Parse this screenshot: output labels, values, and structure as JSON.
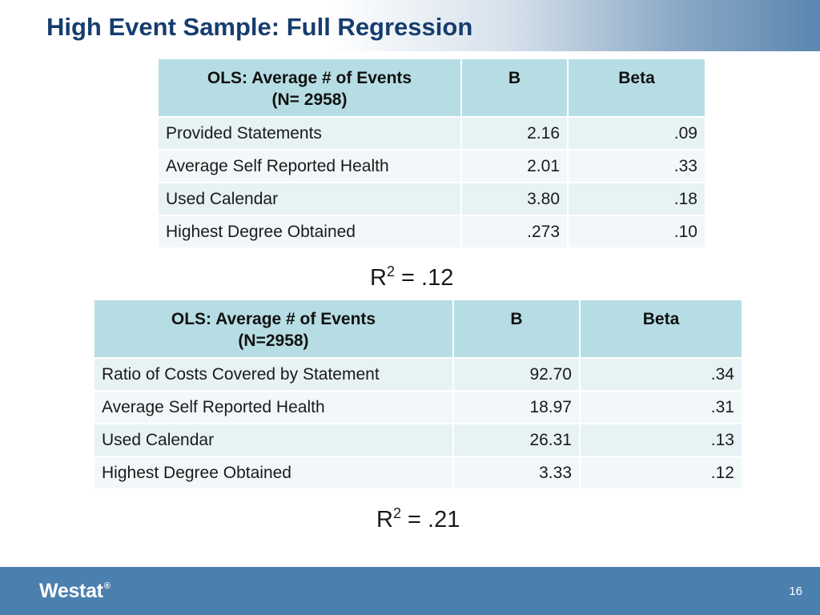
{
  "slide": {
    "title": "High Event Sample: Full Regression",
    "page_number": "16",
    "logo_text": "Westat",
    "logo_mark": "®"
  },
  "table1": {
    "header": {
      "col1_line1": "OLS: Average # of Events",
      "col1_line2": "(N= 2958)",
      "col2": "B",
      "col3": "Beta"
    },
    "rows": [
      {
        "label": "Provided Statements",
        "b": "2.16",
        "beta": ".09"
      },
      {
        "label": "Average Self Reported Health",
        "b": "2.01",
        "beta": ".33"
      },
      {
        "label": "Used Calendar",
        "b": "3.80",
        "beta": ".18"
      },
      {
        "label": "Highest Degree Obtained",
        "b": ".273",
        "beta": ".10"
      }
    ],
    "r2": {
      "symbol": "R",
      "exp": "2",
      "value": " = .12"
    }
  },
  "table2": {
    "header": {
      "col1_line1": "OLS: Average # of Events",
      "col1_line2": "(N=2958)",
      "col2": "B",
      "col3": "Beta"
    },
    "rows": [
      {
        "label": "Ratio of Costs Covered by Statement",
        "b": "92.70",
        "beta": ".34"
      },
      {
        "label": "Average Self Reported Health",
        "b": "18.97",
        "beta": ".31"
      },
      {
        "label": "Used Calendar",
        "b": "26.31",
        "beta": ".13"
      },
      {
        "label": "Highest Degree Obtained",
        "b": "3.33",
        "beta": ".12"
      }
    ],
    "r2": {
      "symbol": "R",
      "exp": "2",
      "value": " = .21"
    }
  },
  "colors": {
    "title_text": "#163d6e",
    "header_fill": "#b7dde4",
    "row_fill_odd": "#e7f2f4",
    "row_fill_even": "#f2f8f9",
    "footer_bar": "#4b7fae"
  }
}
